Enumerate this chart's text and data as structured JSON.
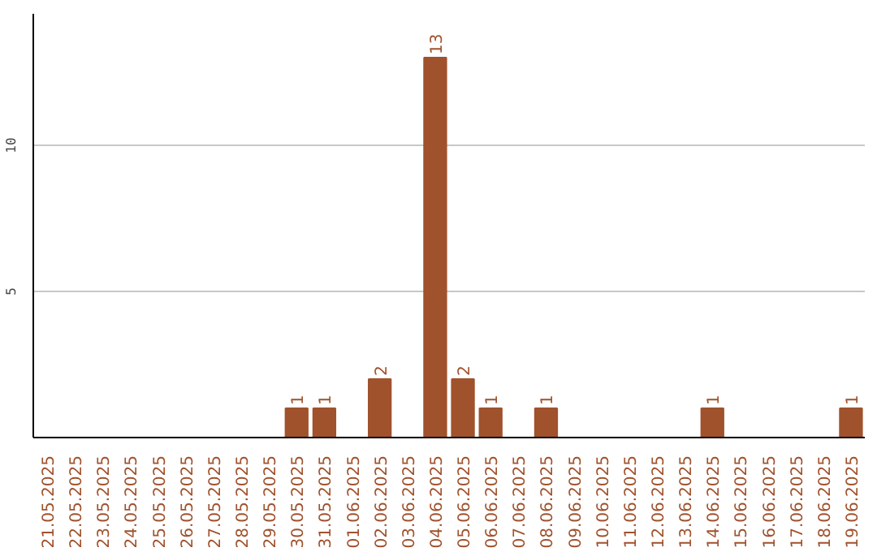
{
  "chart_data": {
    "type": "bar",
    "categories": [
      "21.05.2025",
      "22.05.2025",
      "23.05.2025",
      "24.05.2025",
      "25.05.2025",
      "26.05.2025",
      "27.05.2025",
      "28.05.2025",
      "29.05.2025",
      "30.05.2025",
      "31.05.2025",
      "01.06.2025",
      "02.06.2025",
      "03.06.2025",
      "04.06.2025",
      "05.06.2025",
      "06.06.2025",
      "07.06.2025",
      "08.06.2025",
      "09.06.2025",
      "10.06.2025",
      "11.06.2025",
      "12.06.2025",
      "13.06.2025",
      "14.06.2025",
      "15.06.2025",
      "16.06.2025",
      "17.06.2025",
      "18.06.2025",
      "19.06.2025"
    ],
    "values": [
      0,
      0,
      0,
      0,
      0,
      0,
      0,
      0,
      0,
      1,
      1,
      0,
      2,
      0,
      13,
      2,
      1,
      0,
      1,
      0,
      0,
      0,
      0,
      0,
      1,
      0,
      0,
      0,
      0,
      1
    ],
    "value_labels": [
      null,
      null,
      null,
      null,
      null,
      null,
      null,
      null,
      null,
      "1",
      "1",
      null,
      "2",
      null,
      "13",
      "2",
      "1",
      null,
      "1",
      null,
      null,
      null,
      null,
      null,
      "1",
      null,
      null,
      null,
      null,
      "1"
    ],
    "color": "#a0522d",
    "ylim": [
      0,
      14.5
    ],
    "yticks": [
      5,
      10
    ],
    "grid": "y"
  }
}
